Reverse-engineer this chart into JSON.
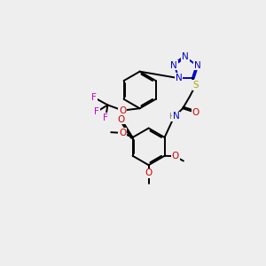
{
  "background_color": "#eeeeee",
  "atom_colors": {
    "C": "#000000",
    "N": "#0000cc",
    "O": "#cc0000",
    "S": "#aaaa00",
    "F": "#cc00cc",
    "H": "#777777"
  },
  "lw": 1.4,
  "fs": 7.5
}
